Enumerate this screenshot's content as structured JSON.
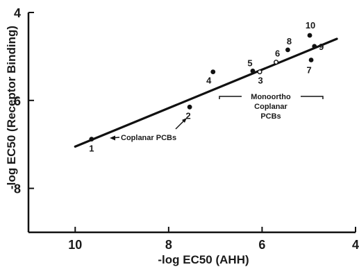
{
  "chart_data": {
    "type": "scatter",
    "xlabel": "-log EC50 (AHH)",
    "ylabel": "-log EC50 (Receptor Binding)",
    "x_ticks": [
      10,
      8,
      6,
      4
    ],
    "y_ticks": [
      4,
      6,
      8
    ],
    "xlim": [
      11,
      4
    ],
    "ylim": [
      4,
      9
    ],
    "points": [
      {
        "label": "1",
        "x": 9.65,
        "y": 6.88,
        "filled": true
      },
      {
        "label": "2",
        "x": 7.55,
        "y": 6.15,
        "filled": true
      },
      {
        "label": "3",
        "x": 6.05,
        "y": 5.35,
        "filled": false
      },
      {
        "label": "4",
        "x": 7.05,
        "y": 5.35,
        "filled": true
      },
      {
        "label": "5",
        "x": 6.2,
        "y": 5.33,
        "filled": true
      },
      {
        "label": "6",
        "x": 5.7,
        "y": 5.13,
        "filled": false
      },
      {
        "label": "7",
        "x": 4.95,
        "y": 5.08,
        "filled": true
      },
      {
        "label": "8",
        "x": 5.45,
        "y": 4.85,
        "filled": true
      },
      {
        "label": "9",
        "x": 4.88,
        "y": 4.77,
        "filled": true
      },
      {
        "label": "10",
        "x": 4.98,
        "y": 4.52,
        "filled": true
      }
    ],
    "regression_line": {
      "x": [
        10,
        4.4
      ],
      "y": [
        7.05,
        4.6
      ]
    },
    "annotations": [
      {
        "text": "Coplanar PCBs"
      },
      {
        "lines": [
          "Monoortho",
          "Coplanar",
          "PCBs"
        ]
      }
    ]
  }
}
